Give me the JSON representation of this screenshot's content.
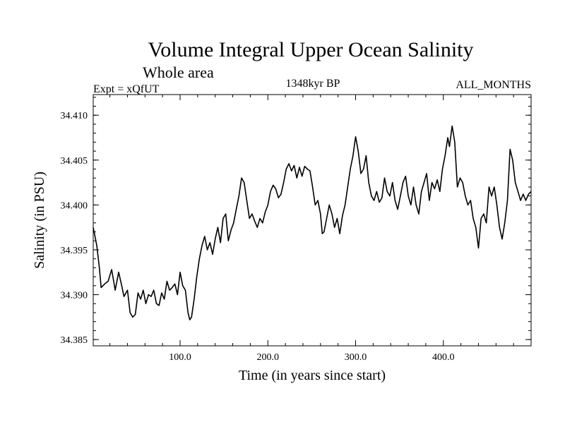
{
  "chart_data": {
    "type": "line",
    "title": "Volume Integral Upper Ocean Salinity",
    "subtitle": "Whole area",
    "experiment": "Expt = xQfUT",
    "period": "1348kyr BP",
    "months": "ALL_MONTHS",
    "xlabel": "Time (in years since start)",
    "ylabel": "Salinity (in PSU)",
    "xlim": [
      1,
      500
    ],
    "ylim": [
      34.3843,
      34.4123
    ],
    "xticks": [
      100,
      200,
      300,
      400
    ],
    "xtick_labels": [
      "100.0",
      "200.0",
      "300.0",
      "400.0"
    ],
    "yticks": [
      34.385,
      34.39,
      34.395,
      34.4,
      34.405,
      34.41
    ],
    "ytick_labels": [
      "34.385",
      "34.390",
      "34.395",
      "34.400",
      "34.405",
      "34.410"
    ],
    "grid": false,
    "series": [
      {
        "name": "Salinity",
        "x": [
          1,
          5,
          8,
          10,
          14,
          18,
          22,
          26,
          30,
          33,
          36,
          40,
          43,
          46,
          49,
          52,
          55,
          58,
          61,
          64,
          67,
          70,
          73,
          76,
          79,
          82,
          85,
          88,
          91,
          94,
          97,
          100,
          103,
          106,
          109,
          111,
          113,
          116,
          119,
          122,
          125,
          128,
          131,
          134,
          137,
          140,
          143,
          146,
          149,
          152,
          155,
          158,
          161,
          164,
          167,
          170,
          173,
          176,
          179,
          182,
          185,
          188,
          191,
          194,
          197,
          200,
          203,
          206,
          209,
          212,
          215,
          218,
          221,
          224,
          227,
          230,
          233,
          236,
          239,
          242,
          245,
          248,
          251,
          254,
          257,
          260,
          262,
          264,
          267,
          270,
          273,
          276,
          279,
          282,
          285,
          288,
          291,
          294,
          297,
          300,
          303,
          306,
          309,
          312,
          315,
          318,
          321,
          324,
          327,
          330,
          333,
          336,
          339,
          342,
          345,
          348,
          351,
          354,
          357,
          360,
          363,
          366,
          369,
          372,
          375,
          378,
          381,
          384,
          387,
          390,
          393,
          396,
          399,
          402,
          405,
          407,
          410,
          413,
          416,
          419,
          422,
          425,
          428,
          431,
          434,
          437,
          440,
          443,
          446,
          449,
          452,
          455,
          458,
          461,
          464,
          467,
          470,
          473,
          476,
          479,
          482,
          485,
          488,
          491,
          494,
          497,
          500
        ],
        "y": [
          34.3975,
          34.3955,
          34.393,
          34.3908,
          34.3912,
          34.3915,
          34.3928,
          34.3905,
          34.3925,
          34.3912,
          34.3898,
          34.3905,
          34.388,
          34.3875,
          34.3878,
          34.3902,
          34.3895,
          34.3905,
          34.389,
          34.39,
          34.3898,
          34.3905,
          34.389,
          34.3888,
          34.3902,
          34.3895,
          34.3915,
          34.3905,
          34.3908,
          34.3912,
          34.39,
          34.3925,
          34.391,
          34.3905,
          34.388,
          34.3872,
          34.3875,
          34.3895,
          34.392,
          34.394,
          34.3955,
          34.3965,
          34.395,
          34.3958,
          34.3945,
          34.3962,
          34.3975,
          34.3958,
          34.3985,
          34.399,
          34.396,
          34.3972,
          34.398,
          34.3995,
          34.401,
          34.403,
          34.4025,
          34.4005,
          34.3985,
          34.399,
          34.3982,
          34.3975,
          34.3985,
          34.398,
          34.3992,
          34.4,
          34.4015,
          34.4022,
          34.4018,
          34.4008,
          34.4012,
          34.4025,
          34.404,
          34.4046,
          34.4038,
          34.4044,
          34.403,
          34.4042,
          34.4032,
          34.4043,
          34.404,
          34.4038,
          34.402,
          34.4,
          34.4005,
          34.399,
          34.3968,
          34.397,
          34.3985,
          34.4,
          34.399,
          34.3975,
          34.3985,
          34.3968,
          34.3988,
          34.4,
          34.402,
          34.404,
          34.4055,
          34.4076,
          34.406,
          34.4035,
          34.404,
          34.4055,
          34.4025,
          34.401,
          34.4005,
          34.4015,
          34.4003,
          34.4008,
          34.403,
          34.4015,
          34.401,
          34.4025,
          34.4005,
          34.3995,
          34.401,
          34.4025,
          34.4032,
          34.401,
          34.4,
          34.402,
          34.4,
          34.399,
          34.4015,
          34.4025,
          34.4035,
          34.4005,
          34.4025,
          34.4018,
          34.4028,
          34.4015,
          34.404,
          34.4055,
          34.4075,
          34.4065,
          34.4088,
          34.407,
          34.402,
          34.403,
          34.4025,
          34.401,
          34.4,
          34.4005,
          34.3985,
          34.3975,
          34.3952,
          34.3985,
          34.399,
          34.398,
          34.402,
          34.401,
          34.402,
          34.4,
          34.3975,
          34.3962,
          34.398,
          34.4005,
          34.4062,
          34.405,
          34.4025,
          34.4015,
          34.4005,
          34.4012,
          34.4005,
          34.4012,
          34.4015
        ]
      }
    ]
  }
}
